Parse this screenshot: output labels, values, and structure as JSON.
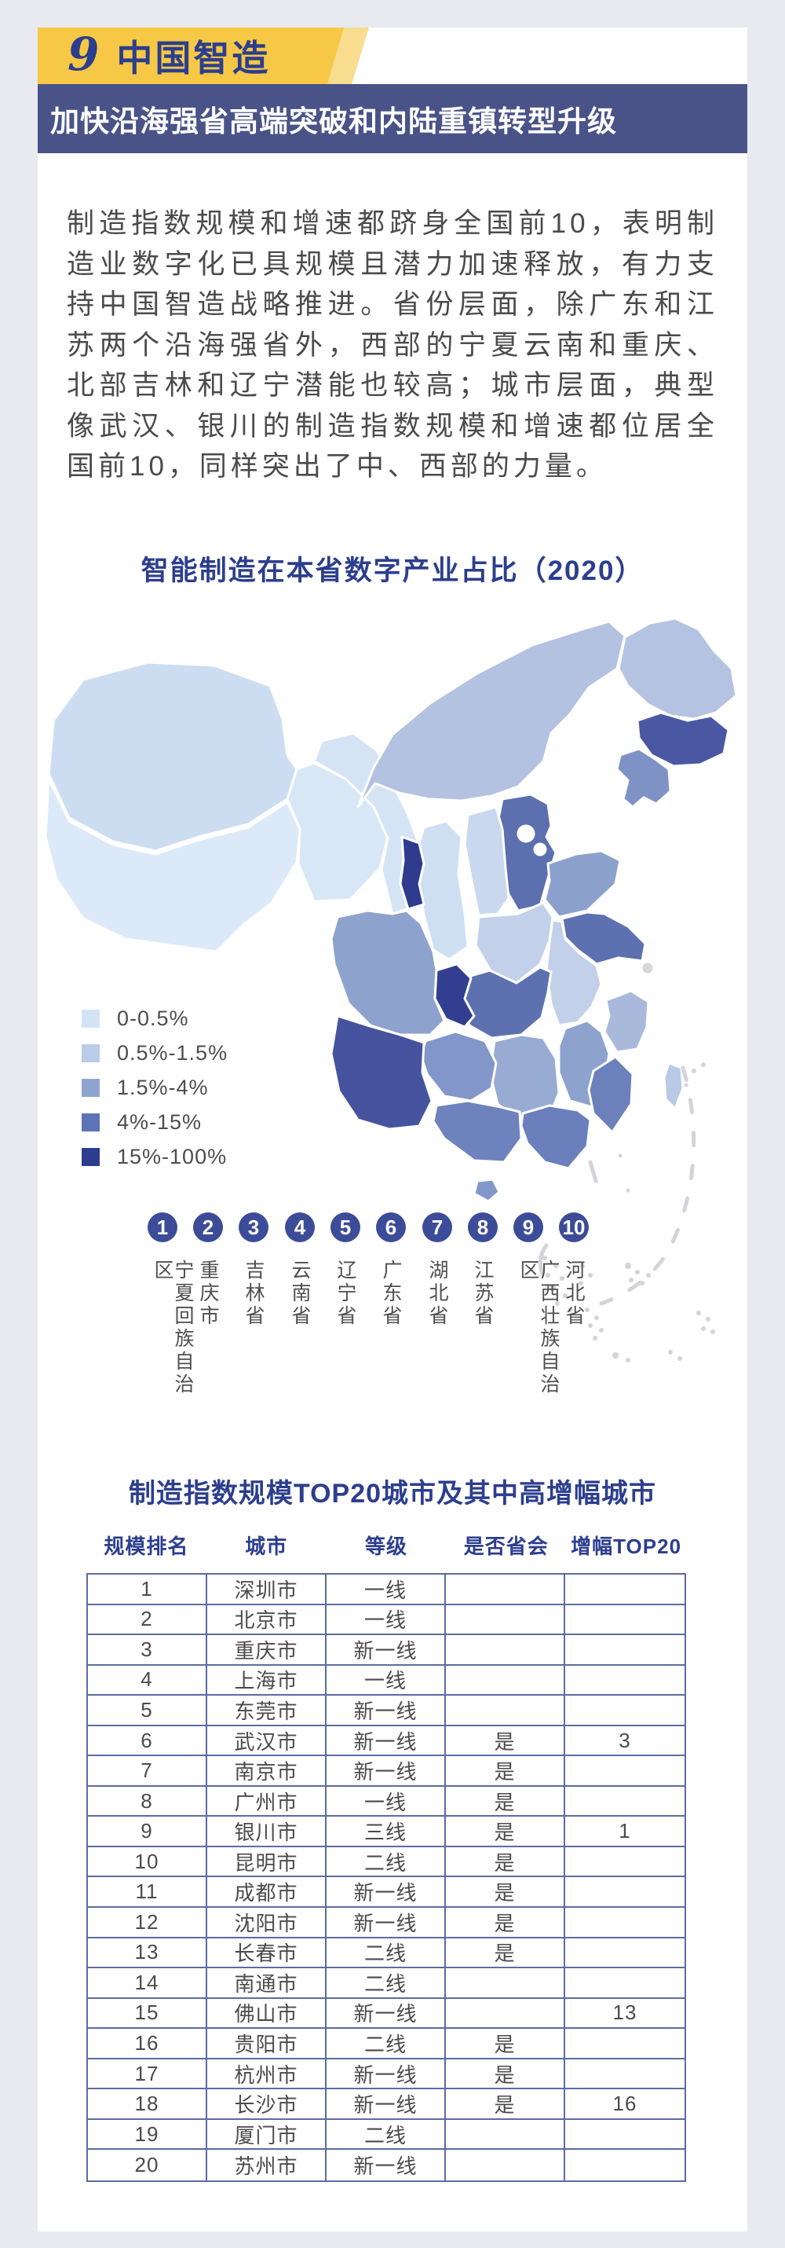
{
  "header": {
    "badge_number": "9",
    "title": "中国智造",
    "banner": "加快沿海强省高端突破和内陆重镇转型升级",
    "accent_yellow": "#f6c845",
    "accent_yellow_light": "#f8dc90",
    "accent_navy": "#4a5388",
    "title_color": "#2c3e8e"
  },
  "paragraph": "制造指数规模和增速都跻身全国前10，表明制造业数字化已具规模且潜力加速释放，有力支持中国智造战略推进。省份层面，除广东和江苏两个沿海强省外，西部的宁夏云南和重庆、北部吉林和辽宁潜能也较高；城市层面，典型像武汉、银川的制造指数规模和增速都位居全国前10，同样突出了中、西部的力量。",
  "map_section": {
    "title": "智能制造在本省数字产业占比（2020）",
    "legend": [
      {
        "label": "0-0.5%",
        "color": "#d3e3f6"
      },
      {
        "label": "0.5%-1.5%",
        "color": "#b9cce8"
      },
      {
        "label": "1.5%-4%",
        "color": "#8da4d0"
      },
      {
        "label": "4%-15%",
        "color": "#5c74b6"
      },
      {
        "label": "15%-100%",
        "color": "#2e3c8f"
      }
    ],
    "ranking": [
      {
        "rank": "1",
        "province": "宁夏回族自治区"
      },
      {
        "rank": "2",
        "province": "重庆市"
      },
      {
        "rank": "3",
        "province": "吉林省"
      },
      {
        "rank": "4",
        "province": "云南省"
      },
      {
        "rank": "5",
        "province": "辽宁省"
      },
      {
        "rank": "6",
        "province": "广东省"
      },
      {
        "rank": "7",
        "province": "湖北省"
      },
      {
        "rank": "8",
        "province": "江苏省"
      },
      {
        "rank": "9",
        "province": "广西壮族自治区"
      },
      {
        "rank": "10",
        "province": "河北省"
      }
    ],
    "provinces": [
      {
        "name": "新疆",
        "color": "#cdddf1"
      },
      {
        "name": "西藏",
        "color": "#dbe9f8"
      },
      {
        "name": "青海",
        "color": "#d8e7f6"
      },
      {
        "name": "甘肃",
        "color": "#d5e4f5"
      },
      {
        "name": "内蒙古",
        "color": "#b3c2e0"
      },
      {
        "name": "黑龙江",
        "color": "#b4c3e1"
      },
      {
        "name": "吉林",
        "color": "#4a58a4"
      },
      {
        "name": "辽宁",
        "color": "#7e92c6"
      },
      {
        "name": "河北",
        "color": "#5c6fae"
      },
      {
        "name": "北京",
        "color": "#ffffff"
      },
      {
        "name": "天津",
        "color": "#ffffff"
      },
      {
        "name": "山西",
        "color": "#c9d8ee"
      },
      {
        "name": "山东",
        "color": "#8ba0cb"
      },
      {
        "name": "宁夏",
        "color": "#2e3b8e"
      },
      {
        "name": "陕西",
        "color": "#cfdff2"
      },
      {
        "name": "河南",
        "color": "#c2d0ea"
      },
      {
        "name": "江苏",
        "color": "#5d70b0"
      },
      {
        "name": "上海",
        "color": "#d6d7da"
      },
      {
        "name": "安徽",
        "color": "#c2d0ea"
      },
      {
        "name": "湖北",
        "color": "#5d70b0"
      },
      {
        "name": "四川",
        "color": "#8da2cd"
      },
      {
        "name": "重庆",
        "color": "#323f90"
      },
      {
        "name": "浙江",
        "color": "#a8b9dc"
      },
      {
        "name": "江西",
        "color": "#8da2cd"
      },
      {
        "name": "湖南",
        "color": "#98abd3"
      },
      {
        "name": "贵州",
        "color": "#8396c9"
      },
      {
        "name": "云南",
        "color": "#46539e"
      },
      {
        "name": "广西",
        "color": "#6e82bd"
      },
      {
        "name": "广东",
        "color": "#6a7fbc"
      },
      {
        "name": "福建",
        "color": "#6c80bc"
      },
      {
        "name": "台湾",
        "color": "#b9cae6"
      },
      {
        "name": "海南",
        "color": "#8398ca"
      }
    ]
  },
  "table_section": {
    "title": "制造指数规模TOP20城市及其中高增幅城市",
    "columns": [
      "规模排名",
      "城市",
      "等级",
      "是否省会",
      "增幅TOP20"
    ],
    "rows": [
      [
        "1",
        "深圳市",
        "一线",
        "",
        ""
      ],
      [
        "2",
        "北京市",
        "一线",
        "",
        ""
      ],
      [
        "3",
        "重庆市",
        "新一线",
        "",
        ""
      ],
      [
        "4",
        "上海市",
        "一线",
        "",
        ""
      ],
      [
        "5",
        "东莞市",
        "新一线",
        "",
        ""
      ],
      [
        "6",
        "武汉市",
        "新一线",
        "是",
        "3"
      ],
      [
        "7",
        "南京市",
        "新一线",
        "是",
        ""
      ],
      [
        "8",
        "广州市",
        "一线",
        "是",
        ""
      ],
      [
        "9",
        "银川市",
        "三线",
        "是",
        "1"
      ],
      [
        "10",
        "昆明市",
        "二线",
        "是",
        ""
      ],
      [
        "11",
        "成都市",
        "新一线",
        "是",
        ""
      ],
      [
        "12",
        "沈阳市",
        "新一线",
        "是",
        ""
      ],
      [
        "13",
        "长春市",
        "二线",
        "是",
        ""
      ],
      [
        "14",
        "南通市",
        "二线",
        "",
        ""
      ],
      [
        "15",
        "佛山市",
        "新一线",
        "",
        "13"
      ],
      [
        "16",
        "贵阳市",
        "二线",
        "是",
        ""
      ],
      [
        "17",
        "杭州市",
        "新一线",
        "是",
        ""
      ],
      [
        "18",
        "长沙市",
        "新一线",
        "是",
        "16"
      ],
      [
        "19",
        "厦门市",
        "二线",
        "",
        ""
      ],
      [
        "20",
        "苏州市",
        "新一线",
        "",
        ""
      ]
    ]
  }
}
